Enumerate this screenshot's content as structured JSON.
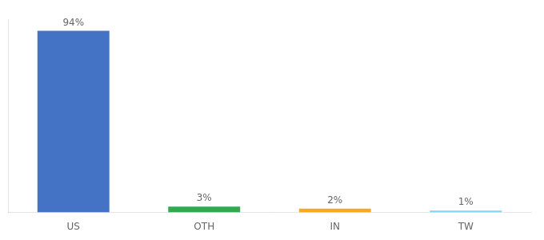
{
  "chart_data": {
    "type": "bar",
    "categories": [
      "US",
      "OTH",
      "IN",
      "TW"
    ],
    "values": [
      94,
      3,
      2,
      1
    ],
    "value_labels": [
      "94%",
      "3%",
      "2%",
      "1%"
    ],
    "colors": [
      "#4472c4",
      "#33a853",
      "#f9a825",
      "#81d4fa"
    ],
    "ylim": [
      0,
      100
    ],
    "data_labels": true,
    "tick_labels": "x",
    "grid": false
  }
}
